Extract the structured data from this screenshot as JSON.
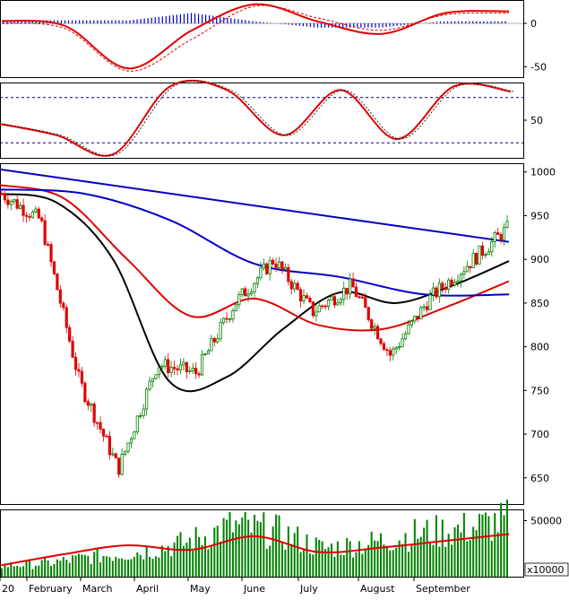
{
  "colors": {
    "background": "#ffffff",
    "up": "#008000",
    "down": "#e00000",
    "macd_line": "#e00000",
    "macd_hist": "#0000c8",
    "signal": "#e00000",
    "sma_black": "#000000",
    "sma_red": "#e00000",
    "sma_blue": "#0000c8",
    "trend_blue": "#0000c8",
    "guide_blue": "#000080",
    "volume_avg": "#e00000"
  },
  "chart_data": [
    {
      "type": "line",
      "panel": "MACD",
      "y_ticks": [
        "0",
        "-50"
      ],
      "ylim": [
        -62,
        27
      ],
      "x": [
        "Jan",
        "Feb",
        "Mar",
        "Apr",
        "May",
        "Jun",
        "Jul",
        "Aug",
        "Sep"
      ],
      "series": [
        {
          "values": [
            3,
            -3,
            -52,
            -8,
            22,
            2,
            -12,
            12,
            14
          ]
        },
        {
          "values": [
            0,
            -6,
            -55,
            -18,
            20,
            6,
            -8,
            10,
            12
          ]
        }
      ]
    },
    {
      "type": "line",
      "panel": "Stochastic",
      "y_ticks": [
        "50"
      ],
      "ylim": [
        0,
        100
      ],
      "guides": [
        80,
        20
      ],
      "series": [
        {
          "values": [
            45,
            30,
            5,
            95,
            90,
            30,
            90,
            25,
            95,
            88
          ]
        }
      ]
    },
    {
      "type": "candlestick",
      "panel": "Price",
      "y_ticks": [
        "1000",
        "950",
        "900",
        "850",
        "800",
        "750",
        "700",
        "650"
      ],
      "ylim": [
        620,
        1010
      ],
      "x_ticks": [
        "20",
        "February",
        "March",
        "April",
        "May",
        "June",
        "July",
        "August",
        "September"
      ],
      "price_points": [
        {
          "month": "Jan",
          "close": 975
        },
        {
          "month": "Feb",
          "close": 945
        },
        {
          "month": "Mar-mid",
          "close": 760
        },
        {
          "month": "Mar-end",
          "close": 660
        },
        {
          "month": "Apr-mid",
          "close": 780
        },
        {
          "month": "May-start",
          "close": 770
        },
        {
          "month": "May-end",
          "close": 850
        },
        {
          "month": "Jun-start",
          "close": 900
        },
        {
          "month": "Jun-mid",
          "close": 840
        },
        {
          "month": "Jul-start",
          "close": 870
        },
        {
          "month": "Jul-end",
          "close": 790
        },
        {
          "month": "Aug-mid",
          "close": 855
        },
        {
          "month": "Sep-start",
          "close": 895
        },
        {
          "month": "Sep-end",
          "close": 935
        }
      ],
      "moving_averages": [
        {
          "color": "black",
          "values": [
            975,
            965,
            900,
            760,
            765,
            820,
            862,
            850,
            870,
            898
          ]
        },
        {
          "color": "red",
          "values": [
            985,
            970,
            900,
            835,
            855,
            825,
            820,
            845,
            875
          ]
        },
        {
          "color": "blue",
          "values": [
            980,
            975,
            945,
            895,
            880,
            860,
            860
          ]
        },
        {
          "color": "blue",
          "values": [
            1003,
            920
          ]
        }
      ]
    },
    {
      "type": "bar",
      "panel": "Volume",
      "y_ticks": [
        "50000"
      ],
      "unit_label": "x10000",
      "ylim": [
        0,
        60000
      ],
      "average": [
        10000,
        20000,
        28000,
        24000,
        36000,
        22000,
        26000,
        32000,
        38000
      ],
      "volume_shape": [
        10,
        12,
        18,
        22,
        30,
        45,
        40,
        25,
        30,
        38,
        42,
        50
      ]
    }
  ]
}
